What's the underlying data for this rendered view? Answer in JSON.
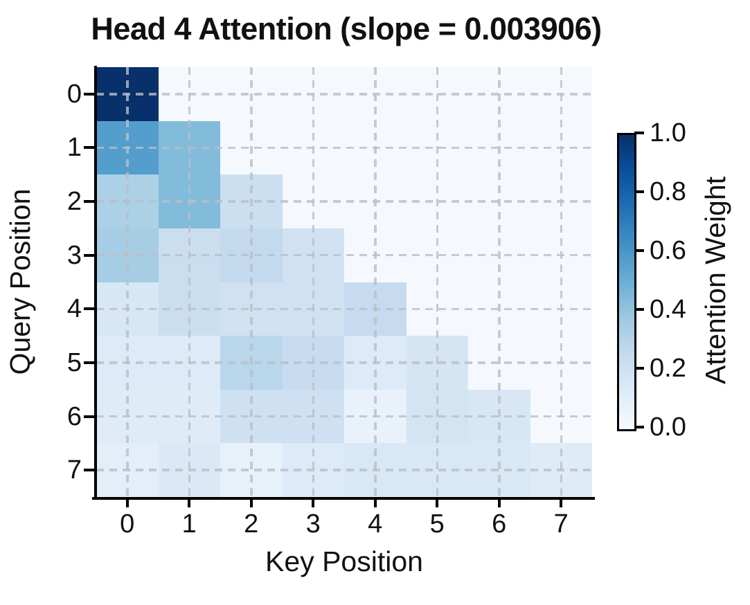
{
  "chart_data": {
    "type": "heatmap",
    "title": "Head 4 Attention (slope = 0.003906)",
    "xlabel": "Key Position",
    "ylabel": "Query Position",
    "x_tick_labels": [
      "0",
      "1",
      "2",
      "3",
      "4",
      "5",
      "6",
      "7"
    ],
    "y_tick_labels": [
      "0",
      "1",
      "2",
      "3",
      "4",
      "5",
      "6",
      "7"
    ],
    "colormap": "Blues",
    "vmin": 0.0,
    "vmax": 1.0,
    "grid": true,
    "masked_upper_triangle": true,
    "values": [
      [
        1.0,
        null,
        null,
        null,
        null,
        null,
        null,
        null
      ],
      [
        0.57,
        0.44,
        null,
        null,
        null,
        null,
        null,
        null
      ],
      [
        0.33,
        0.44,
        0.22,
        null,
        null,
        null,
        null,
        null
      ],
      [
        0.35,
        0.23,
        0.26,
        0.2,
        null,
        null,
        null,
        null
      ],
      [
        0.16,
        0.23,
        0.2,
        0.2,
        0.25,
        null,
        null,
        null
      ],
      [
        0.13,
        0.13,
        0.29,
        0.24,
        0.13,
        0.17,
        null,
        null
      ],
      [
        0.12,
        0.12,
        0.21,
        0.21,
        0.07,
        0.18,
        0.16,
        null
      ],
      [
        0.1,
        0.14,
        0.08,
        0.13,
        0.15,
        0.15,
        0.15,
        0.12
      ]
    ],
    "colorbar": {
      "label": "Attention Weight",
      "tick_labels": [
        "0.0",
        "0.2",
        "0.4",
        "0.6",
        "0.8",
        "1.0"
      ],
      "tick_values": [
        0.0,
        0.2,
        0.4,
        0.6,
        0.8,
        1.0
      ]
    },
    "colors": {
      "cmap_stops": [
        "#f7fbff",
        "#deebf7",
        "#c6dbef",
        "#9ecae1",
        "#6baed6",
        "#4292c6",
        "#2171b5",
        "#08519c",
        "#08306b"
      ],
      "masked_cell": "#f5f9fe",
      "grid_line": "rgba(185,191,198,0.8)",
      "spine": "#000000",
      "background": "#ffffff"
    }
  }
}
